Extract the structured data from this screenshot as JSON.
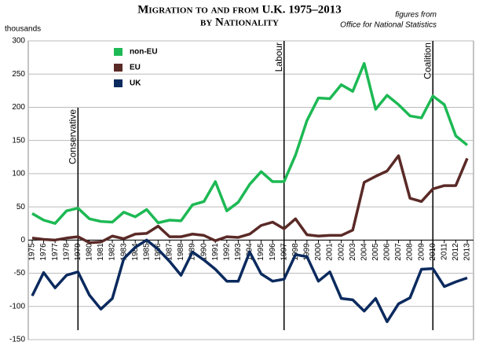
{
  "chart_data": {
    "type": "line",
    "title": [
      "Migration to and from U.K. 1975–2013",
      "by Nationality"
    ],
    "source": [
      "figures from",
      "Office for National Statistics"
    ],
    "y_label": "thousands",
    "categories": [
      "1975",
      "1976",
      "1977",
      "1978",
      "1979",
      "1980",
      "1981",
      "1982",
      "1983",
      "1984",
      "1985",
      "1986",
      "1987",
      "1988",
      "1989",
      "1990",
      "1991",
      "1992",
      "1993",
      "1994",
      "1995",
      "1996",
      "1997",
      "1998",
      "1999",
      "2000",
      "2001",
      "2002",
      "2003",
      "2004",
      "2005",
      "2006",
      "2007",
      "2008",
      "2009",
      "2010",
      "2011",
      "2012",
      "2013"
    ],
    "series": [
      {
        "name": "non-EU",
        "color": "#1db954",
        "values": [
          40,
          30,
          25,
          44,
          48,
          32,
          28,
          27,
          42,
          35,
          46,
          26,
          30,
          29,
          53,
          58,
          88,
          44,
          57,
          84,
          103,
          88,
          88,
          128,
          180,
          214,
          213,
          234,
          224,
          266,
          197,
          218,
          204,
          187,
          184,
          217,
          204,
          157,
          143
        ]
      },
      {
        "name": "EU",
        "color": "#5a2a27",
        "values": [
          3,
          1,
          0,
          3,
          5,
          -4,
          -3,
          6,
          2,
          9,
          10,
          21,
          5,
          5,
          9,
          7,
          -1,
          5,
          4,
          9,
          22,
          27,
          17,
          32,
          8,
          6,
          7,
          7,
          15,
          87,
          96,
          104,
          127,
          63,
          58,
          77,
          82,
          82,
          123
        ]
      },
      {
        "name": "UK",
        "color": "#0b2a5e",
        "values": [
          -84,
          -49,
          -72,
          -53,
          -48,
          -83,
          -104,
          -88,
          -28,
          -11,
          0,
          -14,
          -32,
          -53,
          -18,
          -30,
          -44,
          -62,
          -62,
          -18,
          -51,
          -62,
          -59,
          -22,
          -25,
          -62,
          -48,
          -88,
          -90,
          -107,
          -88,
          -123,
          -96,
          -87,
          -44,
          -43,
          -70,
          -63,
          -57
        ]
      }
    ],
    "annotations": [
      {
        "category": "1979",
        "text": "Conservative"
      },
      {
        "category": "1997",
        "text": "Labour"
      },
      {
        "category": "2010",
        "text": "Coalition"
      }
    ],
    "ylim": [
      -150,
      300
    ],
    "yticks": [
      -150,
      -100,
      -50,
      0,
      50,
      100,
      150,
      200,
      250,
      300
    ],
    "grid": true
  }
}
